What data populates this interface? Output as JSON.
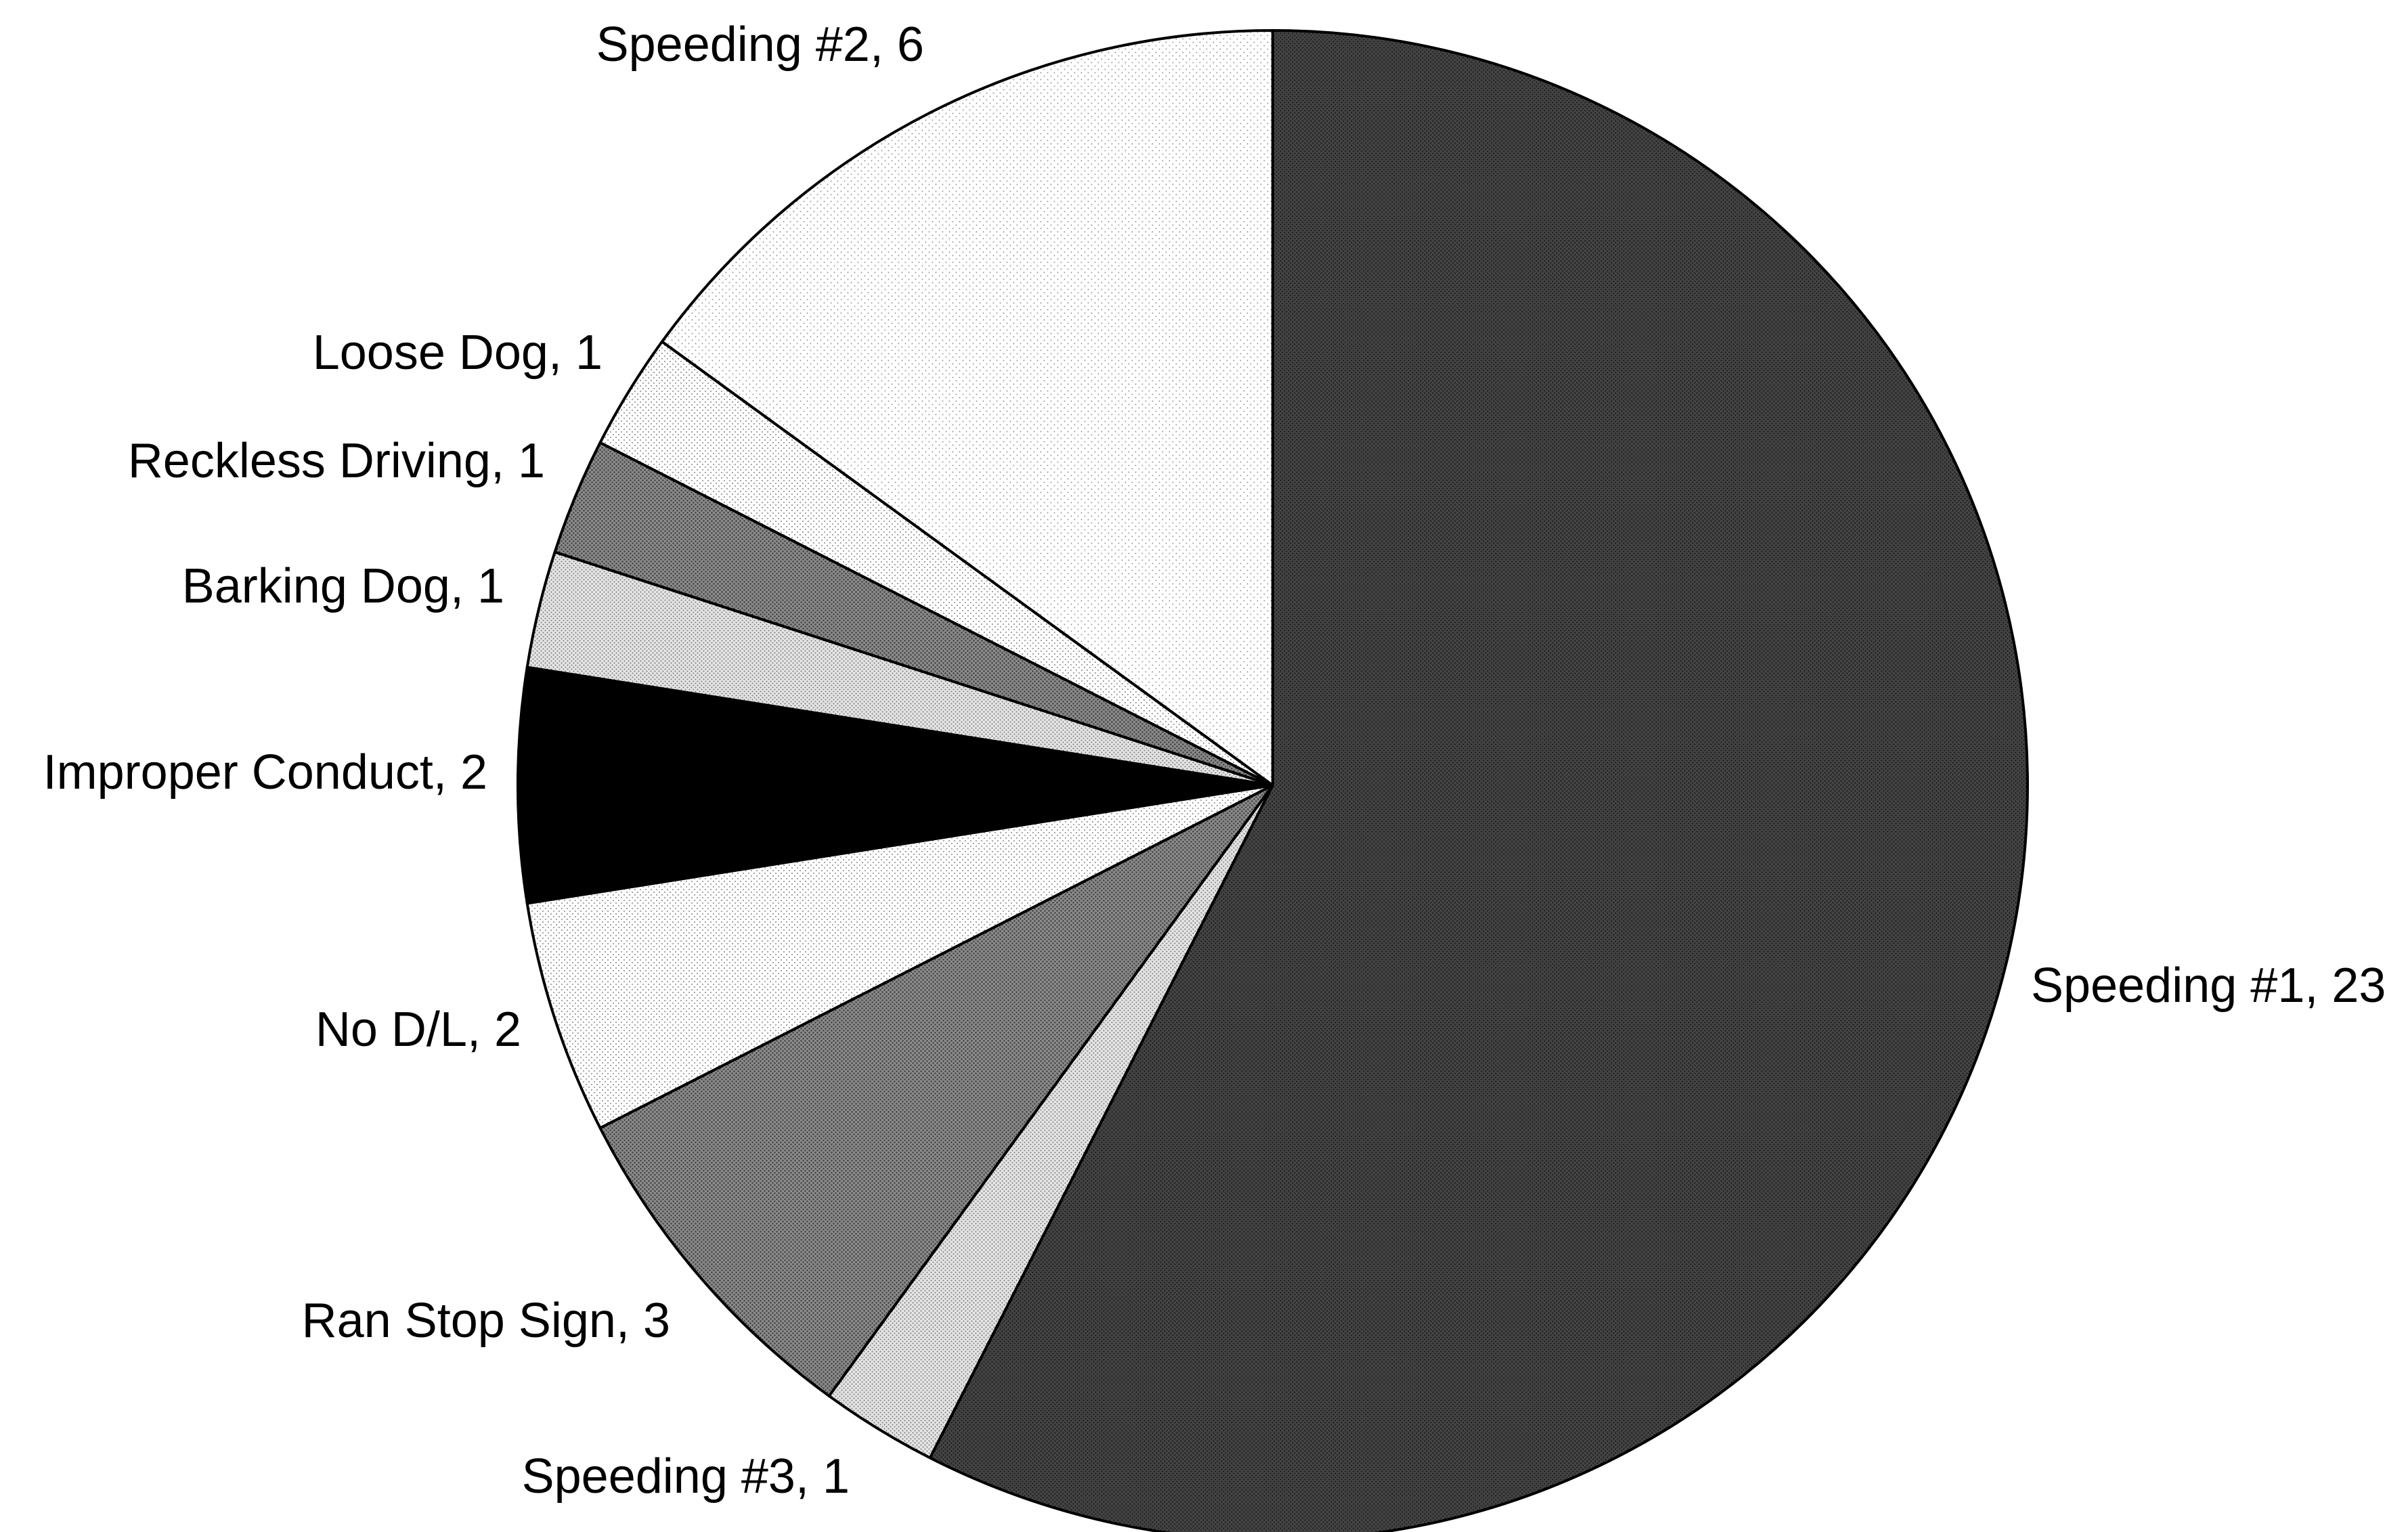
{
  "chart_data": {
    "type": "pie",
    "title": "",
    "start_angle": "12 o'clock",
    "direction": "clockwise",
    "legend": "none",
    "slices": [
      {
        "name": "Speeding #1",
        "value": 23,
        "label": "Speeding #1, 23",
        "color": "#3c3c3c",
        "pattern": "dense-dots-dark"
      },
      {
        "name": "Speeding #3",
        "value": 1,
        "label": "Speeding #3, 1",
        "color": "#d0d0d0",
        "pattern": "dots-light"
      },
      {
        "name": "Ran Stop Sign",
        "value": 3,
        "label": "Ran Stop Sign, 3",
        "color": "#7a7a7a",
        "pattern": "dots-medium"
      },
      {
        "name": "No D/L",
        "value": 2,
        "label": "No D/L, 2",
        "color": "#f2f2f2",
        "pattern": "dots-sparse"
      },
      {
        "name": "Improper Conduct",
        "value": 2,
        "label": "Improper Conduct, 2",
        "color": "#000000",
        "pattern": "solid"
      },
      {
        "name": "Barking Dog",
        "value": 1,
        "label": "Barking Dog, 1",
        "color": "#dcdcdc",
        "pattern": "dots-light"
      },
      {
        "name": "Reckless Driving",
        "value": 1,
        "label": "Reckless Driving, 1",
        "color": "#6e6e6e",
        "pattern": "dots-medium"
      },
      {
        "name": "Loose Dog",
        "value": 1,
        "label": "Loose Dog, 1",
        "color": "#f7f7f7",
        "pattern": "dots-sparse"
      },
      {
        "name": "Speeding #2",
        "value": 6,
        "label": "Speeding #2, 6",
        "color": "#fafafa",
        "pattern": "dots-very-sparse"
      }
    ]
  }
}
